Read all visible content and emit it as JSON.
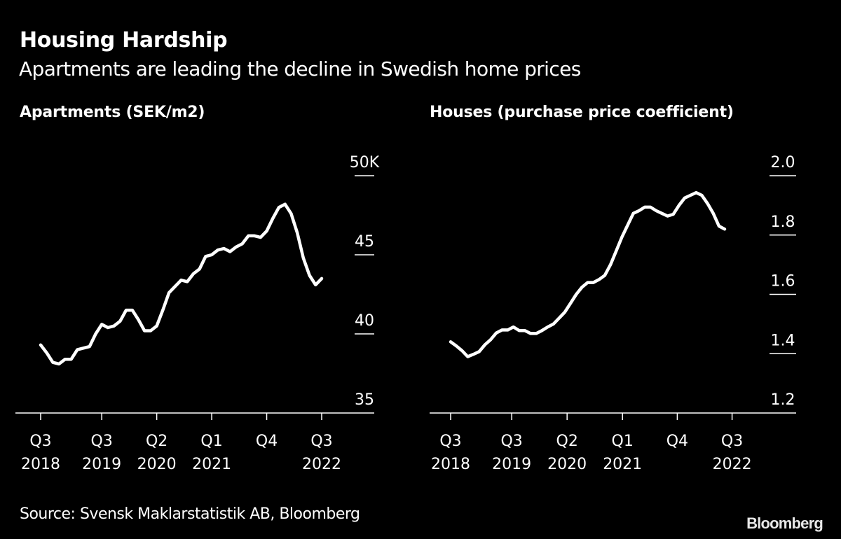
{
  "header": {
    "title": "Housing Hardship",
    "subtitle": "Apartments are leading the decline in Swedish home prices"
  },
  "footer": {
    "source": "Source: Svensk Maklarstatistik AB, Bloomberg",
    "brand": "Bloomberg"
  },
  "colors": {
    "background": "#000000",
    "line": "#ffffff",
    "text": "#ffffff"
  },
  "chart_data": [
    {
      "type": "line",
      "title": "Apartments (SEK/m2)",
      "xlabel": "",
      "ylabel": "",
      "ylim": [
        35,
        50
      ],
      "yticks": [
        35,
        40,
        45,
        50
      ],
      "ytick_labels": [
        "35",
        "40",
        "45",
        "50K"
      ],
      "y_axis_side": "right",
      "grid": false,
      "frequency": "monthly",
      "xticks": [
        {
          "index": 0,
          "label": [
            "Q3",
            "2018"
          ]
        },
        {
          "index": 10,
          "label": [
            "Q3",
            "2019"
          ]
        },
        {
          "index": 19,
          "label": [
            "Q2",
            "2020"
          ]
        },
        {
          "index": 28,
          "label": [
            "Q1",
            "2021"
          ]
        },
        {
          "index": 37,
          "label": [
            "Q4",
            ""
          ]
        },
        {
          "index": 46,
          "label": [
            "Q3",
            "2022"
          ]
        }
      ],
      "xlim_index": [
        0,
        46
      ],
      "series": [
        {
          "name": "Apartments (SEK/m2, thousands)",
          "values": [
            39.3,
            38.8,
            38.2,
            38.1,
            38.4,
            38.4,
            39.0,
            39.1,
            39.2,
            40.0,
            40.6,
            40.4,
            40.5,
            40.8,
            41.5,
            41.5,
            40.9,
            40.2,
            40.2,
            40.5,
            41.5,
            42.6,
            43.0,
            43.4,
            43.3,
            43.8,
            44.1,
            44.9,
            45.0,
            45.3,
            45.4,
            45.2,
            45.5,
            45.7,
            46.2,
            46.2,
            46.1,
            46.5,
            47.3,
            48.0,
            48.2,
            47.6,
            46.4,
            44.8,
            43.7,
            43.1,
            43.5
          ]
        }
      ]
    },
    {
      "type": "line",
      "title": "Houses (purchase price coefficient)",
      "xlabel": "",
      "ylabel": "",
      "ylim": [
        1.2,
        2.0
      ],
      "yticks": [
        1.2,
        1.4,
        1.6,
        1.8,
        2.0
      ],
      "ytick_labels": [
        "1.2",
        "1.4",
        "1.6",
        "1.8",
        "2.0"
      ],
      "y_axis_side": "right",
      "grid": false,
      "frequency": "monthly",
      "xticks": [
        {
          "index": 0,
          "label": [
            "Q3",
            "2018"
          ]
        },
        {
          "index": 10.7,
          "label": [
            "Q3",
            "2019"
          ]
        },
        {
          "index": 20.4,
          "label": [
            "Q2",
            "2020"
          ]
        },
        {
          "index": 30.1,
          "label": [
            "Q1",
            "2021"
          ]
        },
        {
          "index": 39.7,
          "label": [
            "Q4",
            ""
          ]
        },
        {
          "index": 49.3,
          "label": [
            "Q3",
            "2022"
          ]
        }
      ],
      "xlim_index": [
        0,
        48
      ],
      "series": [
        {
          "name": "Houses (purchase price coefficient)",
          "values": [
            1.44,
            1.426,
            1.41,
            1.39,
            1.398,
            1.407,
            1.43,
            1.447,
            1.47,
            1.48,
            1.48,
            1.49,
            1.478,
            1.478,
            1.468,
            1.468,
            1.478,
            1.49,
            1.5,
            1.52,
            1.54,
            1.57,
            1.6,
            1.624,
            1.64,
            1.64,
            1.65,
            1.664,
            1.7,
            1.746,
            1.793,
            1.833,
            1.873,
            1.882,
            1.894,
            1.894,
            1.882,
            1.873,
            1.864,
            1.87,
            1.9,
            1.925,
            1.934,
            1.943,
            1.934,
            1.906,
            1.873,
            1.83,
            1.82
          ]
        }
      ]
    }
  ]
}
